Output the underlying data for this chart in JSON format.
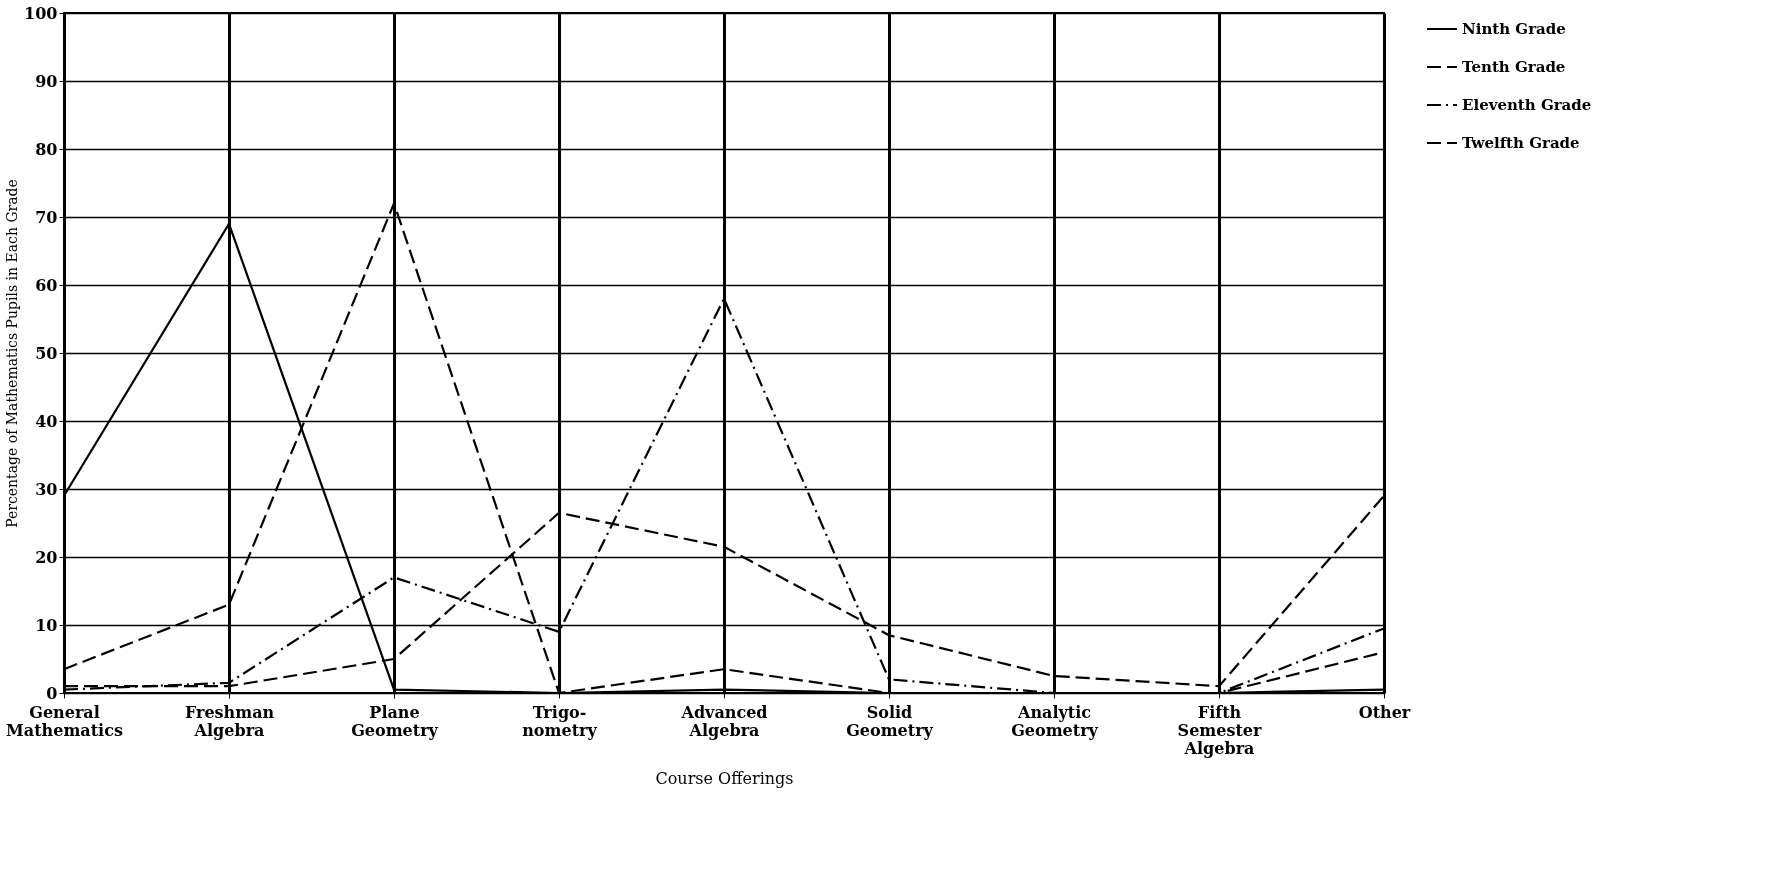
{
  "chart_data": {
    "type": "line",
    "xlabel": "Course Offerings",
    "ylabel": "Percentage of Mathematics Pupils in Each Grade",
    "categories": [
      "General\nMathematics",
      "Freshman\nAlgebra",
      "Plane\nGeometry",
      "Trigo-\nnometry",
      "Advanced\nAlgebra",
      "Solid\nGeometry",
      "Analytic\nGeometry",
      "Fifth\nSemester\nAlgebra",
      "Other"
    ],
    "series": [
      {
        "name": "Ninth Grade",
        "color": "#000000",
        "line_style": "solid",
        "values": [
          29,
          69,
          0.5,
          0,
          0.5,
          0,
          0,
          0,
          0.5
        ]
      },
      {
        "name": "Tenth Grade",
        "color": "#000000",
        "line_style": "dashed",
        "values": [
          3.5,
          13,
          72,
          0,
          3.5,
          0,
          0,
          0,
          6
        ]
      },
      {
        "name": "Eleventh Grade",
        "color": "#000000",
        "line_style": "dashdot",
        "values": [
          0.5,
          1.5,
          17,
          9,
          58,
          2,
          0,
          0,
          9.5
        ]
      },
      {
        "name": "Twelfth Grade",
        "color": "#000000",
        "line_style": "dashed",
        "values": [
          1,
          1,
          5,
          26.5,
          21.5,
          8.5,
          2.5,
          1,
          29
        ]
      }
    ],
    "ylim": [
      0,
      100
    ],
    "yticks": [
      0,
      10,
      20,
      30,
      40,
      50,
      60,
      70,
      80,
      90,
      100
    ],
    "grid": true,
    "legend": "right",
    "marker": "none"
  }
}
